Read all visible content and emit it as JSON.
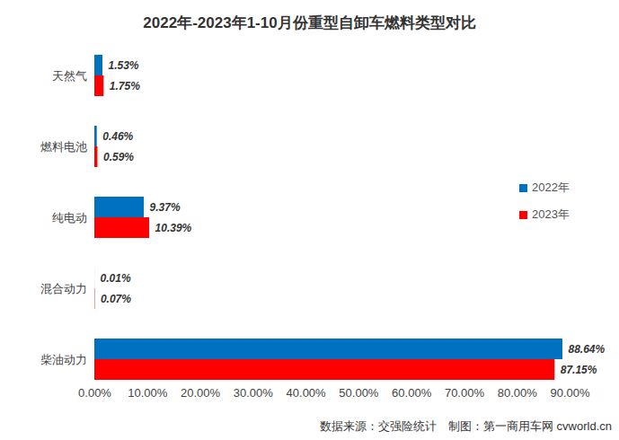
{
  "chart_data": {
    "type": "bar",
    "orientation": "horizontal",
    "title": "2022年-2023年1-10月份重型自卸车燃料类型对比",
    "caption": "数据来源：交强险统计　制图：第一商用车网 cvworld.cn",
    "categories": [
      "天然气",
      "燃料电池",
      "纯电动",
      "混合动力",
      "柴油动力"
    ],
    "series": [
      {
        "name": "2022年",
        "color": "#0070c0",
        "values": [
          1.53,
          0.46,
          9.37,
          0.01,
          88.64
        ],
        "value_labels": [
          "1.53%",
          "0.46%",
          "9.37%",
          "0.01%",
          "88.64%"
        ]
      },
      {
        "name": "2023年",
        "color": "#ff0000",
        "values": [
          1.75,
          0.59,
          10.39,
          0.07,
          87.15
        ],
        "value_labels": [
          "1.75%",
          "0.59%",
          "10.39%",
          "0.07%",
          "87.15%"
        ]
      }
    ],
    "xlim": [
      0,
      90
    ],
    "xticks": [
      {
        "value": 0,
        "label": "0.00%"
      },
      {
        "value": 10,
        "label": "10.00%"
      },
      {
        "value": 20,
        "label": "20.00%"
      },
      {
        "value": 30,
        "label": "30.00%"
      },
      {
        "value": 40,
        "label": "40.00%"
      },
      {
        "value": 50,
        "label": "50.00%"
      },
      {
        "value": 60,
        "label": "60.00%"
      },
      {
        "value": 70,
        "label": "70.00%"
      },
      {
        "value": 80,
        "label": "80.00%"
      },
      {
        "value": 90,
        "label": "90.00%"
      }
    ],
    "grid": false,
    "legend": "right",
    "data_labels": true
  }
}
